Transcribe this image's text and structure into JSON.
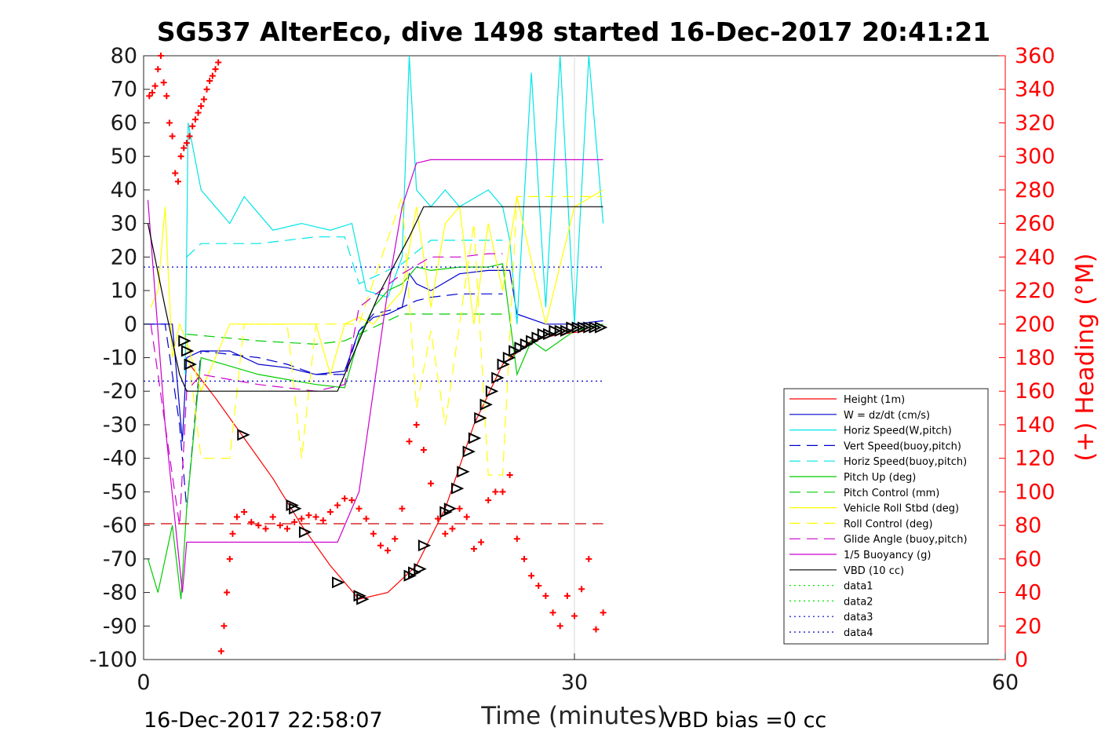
{
  "chart_data": {
    "type": "line",
    "title": "SG537 AlterEco, dive 1498 started 16-Dec-2017 20:41:21",
    "xlabel": "Time (minutes)",
    "ylabel": "",
    "y2label": "(+) Heading (°M)",
    "xlim": [
      0,
      60
    ],
    "ylim": [
      -100,
      80
    ],
    "y2lim": [
      0,
      360
    ],
    "x_ticks": [
      "0",
      "30",
      "60"
    ],
    "y_ticks": [
      "80",
      "70",
      "60",
      "50",
      "40",
      "30",
      "20",
      "10",
      "0",
      "-10",
      "-20",
      "-30",
      "-40",
      "-50",
      "-60",
      "-70",
      "-80",
      "-90",
      "-100"
    ],
    "y2_ticks": [
      "360",
      "340",
      "320",
      "300",
      "280",
      "260",
      "240",
      "220",
      "200",
      "180",
      "160",
      "140",
      "120",
      "100",
      "80",
      "60",
      "40",
      "20",
      "0"
    ],
    "grid": "x=30 only",
    "legend_position": "bottom-right inside",
    "footer_left": "16-Dec-2017 22:58:07",
    "footer_right": "VBD bias =0 cc",
    "series": [
      {
        "name": "Height (1m)",
        "color": "#ff0000",
        "style": "solid",
        "x": [
          3.2,
          5,
          7,
          9,
          11,
          13,
          15,
          17,
          19,
          21,
          23,
          25,
          27,
          29,
          31
        ],
        "y": [
          -12,
          -22,
          -34,
          -46,
          -60,
          -72,
          -82,
          -80,
          -72,
          -55,
          -30,
          -12,
          -5,
          -3,
          -2
        ]
      },
      {
        "name": "W = dz/dt (cm/s)",
        "color": "#0000cc",
        "style": "solid",
        "x": [
          0,
          1,
          2,
          2.7,
          3,
          4,
          6,
          8,
          10,
          12,
          14,
          15,
          16,
          17,
          18,
          18.5,
          19,
          20,
          22,
          24,
          25.5,
          26,
          28,
          30,
          32
        ],
        "y": [
          0,
          0,
          0,
          -35,
          -10,
          -8,
          -8,
          -12,
          -13,
          -15,
          -14,
          -2,
          2,
          3,
          5,
          15,
          12,
          10,
          15,
          16,
          16,
          3,
          0,
          0,
          1
        ]
      },
      {
        "name": "Horiz Speed(W,pitch)",
        "color": "#00e6e6",
        "style": "solid",
        "x": [
          2.9,
          3.1,
          4,
          5,
          6,
          7,
          9,
          11,
          13,
          14.5,
          15.5,
          17,
          18,
          18.5,
          19,
          20,
          21,
          22,
          24,
          25,
          25.5,
          26,
          27,
          28,
          29,
          30,
          31,
          32
        ],
        "y": [
          -15,
          60,
          40,
          35,
          30,
          38,
          28,
          30,
          28,
          30,
          10,
          8,
          20,
          80,
          40,
          35,
          40,
          35,
          40,
          35,
          25,
          0,
          75,
          5,
          80,
          0,
          80,
          30
        ]
      },
      {
        "name": "Vert Speed(buoy,pitch)",
        "color": "#0000cc",
        "style": "dashed",
        "x": [
          0,
          1.5,
          2.5,
          3,
          4,
          8,
          10,
          12,
          14,
          15,
          16,
          17,
          18,
          19,
          20,
          22,
          24,
          25
        ],
        "y": [
          0,
          0,
          -30,
          -55,
          -8,
          -10,
          -12,
          -15,
          -15,
          -2,
          3,
          4,
          5,
          7,
          8,
          9,
          9,
          9
        ]
      },
      {
        "name": "Horiz Speed(buoy,pitch)",
        "color": "#00e6e6",
        "style": "dashed",
        "x": [
          3,
          4,
          8,
          12,
          14,
          15,
          18,
          20,
          22,
          24,
          25
        ],
        "y": [
          20,
          24,
          24,
          26,
          26,
          12,
          18,
          25,
          25,
          25,
          25
        ]
      },
      {
        "name": "Pitch Up (deg)",
        "color": "#00cc00",
        "style": "solid",
        "x": [
          0.3,
          1,
          2,
          2.6,
          3,
          4,
          8,
          12,
          14,
          15,
          16,
          17,
          18,
          19,
          20,
          22,
          24,
          25,
          26,
          27,
          28,
          30,
          32
        ],
        "y": [
          -70,
          -80,
          -60,
          -82,
          -55,
          -10,
          -15,
          -18,
          -19,
          -4,
          5,
          10,
          12,
          17,
          16,
          17,
          17,
          18,
          -15,
          -5,
          -8,
          -2,
          0
        ]
      },
      {
        "name": "Pitch Control (mm)",
        "color": "#00cc00",
        "style": "dashed",
        "x": [
          3,
          8,
          12,
          14,
          15,
          18,
          22,
          25
        ],
        "y": [
          -3,
          -5,
          -6,
          -5,
          -3,
          3,
          3,
          3
        ]
      },
      {
        "name": "Vehicle Roll Stbd (deg)",
        "color": "#ffff00",
        "style": "solid",
        "x": [
          0.5,
          1,
          1.5,
          2,
          2.5,
          3,
          4,
          6,
          8,
          10,
          12,
          13,
          14,
          15,
          16,
          17,
          18,
          19,
          20,
          21,
          22,
          23,
          24,
          25,
          26,
          28,
          30,
          32
        ],
        "y": [
          5,
          10,
          35,
          -10,
          0,
          -5,
          -20,
          0,
          0,
          0,
          0,
          -15,
          0,
          2,
          0,
          5,
          10,
          35,
          5,
          30,
          35,
          0,
          30,
          10,
          38,
          0,
          35,
          40
        ]
      },
      {
        "name": "Roll Control (deg)",
        "color": "#ffff00",
        "style": "dashed",
        "x": [
          3,
          4,
          6,
          7,
          8,
          10,
          11,
          12,
          14,
          15,
          18,
          19,
          20,
          21,
          23,
          24,
          25,
          26,
          28,
          30,
          32
        ],
        "y": [
          -5,
          -40,
          -40,
          0,
          0,
          0,
          -40,
          0,
          0,
          0,
          38,
          -25,
          -2,
          -30,
          30,
          -45,
          -45,
          38,
          38,
          38,
          38
        ]
      },
      {
        "name": "Glide Angle (buoy,pitch)",
        "color": "#cc00cc",
        "style": "dashed",
        "x": [
          0.5,
          1.5,
          2.5,
          3,
          4,
          8,
          12,
          14,
          15,
          18,
          20,
          22,
          24,
          25
        ],
        "y": [
          0,
          -30,
          -60,
          -20,
          -15,
          -18,
          -20,
          -18,
          5,
          15,
          20,
          20,
          21,
          21
        ]
      },
      {
        "name": "1/5 Buoyancy (g)",
        "color": "#cc00cc",
        "style": "solid",
        "x": [
          0.3,
          1.5,
          2.7,
          3,
          5,
          10,
          13.5,
          15,
          16,
          17,
          18,
          19,
          20,
          25,
          32
        ],
        "y": [
          37,
          -30,
          -80,
          -65,
          -65,
          -65,
          -65,
          -50,
          -20,
          10,
          35,
          48,
          49,
          49,
          49
        ]
      },
      {
        "name": "VBD (10 cc)",
        "color": "#000000",
        "style": "solid",
        "x": [
          0.3,
          1.5,
          2.5,
          3,
          13.5,
          14.5,
          15.5,
          16.5,
          17.5,
          18.5,
          19.5,
          32
        ],
        "y": [
          30,
          5,
          -15,
          -20,
          -20,
          -10,
          0,
          10,
          18,
          26,
          35,
          35
        ]
      },
      {
        "name": "data1",
        "color": "#00e600",
        "style": "dotted",
        "x": [],
        "y": []
      },
      {
        "name": "data2",
        "color": "#00e600",
        "style": "dotted",
        "x": [],
        "y": []
      },
      {
        "name": "data3",
        "color": "#0000cc",
        "style": "dotted",
        "x": [
          0,
          32
        ],
        "y": [
          17,
          17
        ]
      },
      {
        "name": "data4",
        "color": "#0000cc",
        "style": "dotted",
        "x": [
          0,
          32
        ],
        "y": [
          -17,
          -17
        ]
      }
    ],
    "reference_line": {
      "color": "#cc0000",
      "style": "dashed",
      "x": [
        0,
        32
      ],
      "y": [
        -59.5,
        -59.5
      ]
    },
    "heading_points": {
      "axis": "right",
      "color": "#ff0000",
      "marker": "+",
      "x": [
        0.4,
        0.6,
        0.8,
        1.0,
        1.2,
        1.4,
        1.6,
        1.8,
        2.0,
        2.2,
        2.4,
        2.6,
        2.8,
        3.0,
        3.2,
        3.4,
        3.6,
        3.8,
        4.0,
        4.2,
        4.4,
        4.6,
        4.8,
        5.0,
        5.2,
        5.4,
        5.6,
        5.8,
        6.0,
        6.2,
        6.5,
        7.0,
        7.5,
        8.0,
        8.5,
        9.0,
        9.5,
        10.0,
        10.5,
        11.0,
        11.5,
        12.0,
        12.5,
        13.0,
        13.5,
        14.0,
        14.5,
        15.0,
        15.5,
        16.0,
        16.5,
        17.0,
        17.5,
        18.0,
        18.5,
        19.0,
        19.5,
        20.0,
        20.5,
        21.0,
        21.5,
        22.0,
        22.5,
        23.0,
        23.5,
        24.0,
        24.5,
        25.0,
        25.5,
        26.0,
        26.5,
        27.0,
        27.5,
        28.0,
        28.5,
        29.0,
        29.5,
        30.0,
        30.5,
        31.0,
        31.5,
        32.0
      ],
      "y": [
        336,
        338,
        342,
        352,
        360,
        344,
        336,
        320,
        312,
        290,
        285,
        300,
        305,
        308,
        312,
        318,
        322,
        326,
        330,
        334,
        340,
        345,
        348,
        352,
        356,
        5,
        20,
        40,
        60,
        75,
        85,
        88,
        82,
        80,
        78,
        85,
        80,
        78,
        82,
        84,
        86,
        85,
        83,
        88,
        92,
        96,
        95,
        90,
        84,
        75,
        68,
        65,
        72,
        90,
        130,
        140,
        125,
        105,
        84,
        75,
        78,
        90,
        85,
        66,
        70,
        95,
        100,
        100,
        110,
        72,
        60,
        50,
        44,
        38,
        28,
        20,
        38,
        26,
        42,
        60,
        18,
        28
      ]
    },
    "vbd_markers": {
      "color": "#000000",
      "marker": "triangle",
      "x": [
        2.8,
        3.0,
        3.2,
        6.9,
        10.3,
        10.5,
        11.2,
        13.5,
        15.0,
        15.2,
        18.5,
        18.8,
        19.2,
        19.5,
        21.0,
        21.3,
        21.8,
        22.2,
        22.6,
        23.0,
        23.4,
        23.8,
        24.2,
        24.6,
        25.0,
        25.4,
        25.8,
        26.2,
        26.6,
        27.0,
        27.4,
        27.8,
        28.2,
        28.6,
        29.0,
        29.4,
        29.8,
        30.2,
        30.6,
        31.0,
        31.4,
        31.8
      ],
      "y": [
        -5,
        -8,
        -12,
        -33,
        -54,
        -55,
        -62,
        -77,
        -81,
        -82,
        -75,
        -74,
        -73,
        -66,
        -56,
        -55,
        -49,
        -44,
        -38,
        -34,
        -28,
        -24,
        -20,
        -16,
        -12,
        -10,
        -8,
        -7,
        -6,
        -5,
        -4,
        -3,
        -3,
        -2,
        -2,
        -2,
        -1,
        -1,
        -1,
        -1,
        -1,
        -1
      ]
    }
  }
}
